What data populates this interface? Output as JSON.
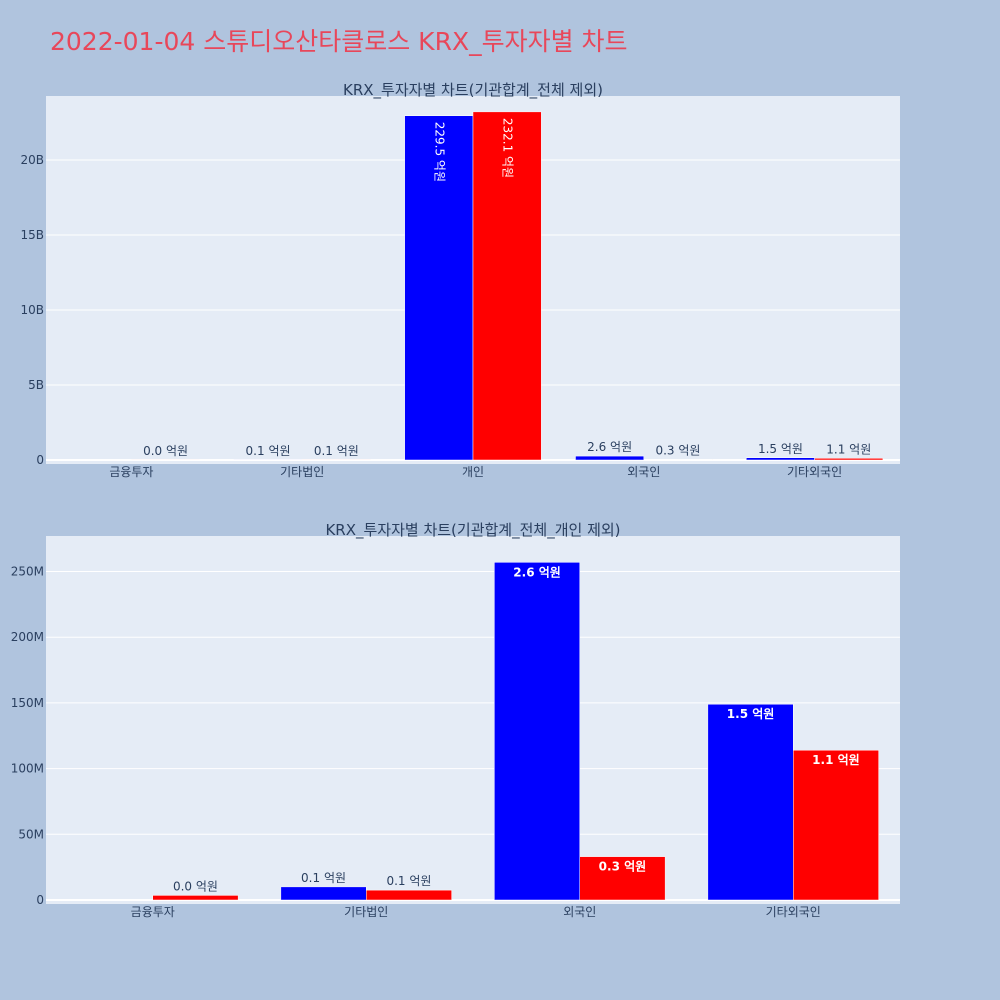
{
  "page": {
    "title": "2022-01-04 스튜디오산타클로스 KRX_투자자별 차트"
  },
  "colors": {
    "background": "#b0c4de",
    "plot_bg": "#e5ecf6",
    "title": "#e8475a",
    "series_a": "#0000ff",
    "series_b": "#ff0000"
  },
  "chart_data": [
    {
      "type": "bar",
      "title": "KRX_투자자별 차트(기관합계_전체 제외)",
      "categories": [
        "금융투자",
        "기타법인",
        "개인",
        "외국인",
        "기타외국인"
      ],
      "ylim": [
        0,
        24000000000
      ],
      "yticks": [
        0,
        5000000000,
        10000000000,
        15000000000,
        20000000000
      ],
      "ytick_labels": [
        "0",
        "5B",
        "10B",
        "15B",
        "20B"
      ],
      "grid": true,
      "series": [
        {
          "color": "#0000ff",
          "values": [
            0,
            10000000,
            22950000000,
            260000000,
            150000000
          ],
          "labels": [
            "",
            "0.1 억원",
            "229.5 억원",
            "2.6 억원",
            "1.5 억원"
          ]
        },
        {
          "color": "#ff0000",
          "values": [
            3000000,
            8000000,
            23210000000,
            33000000,
            114000000
          ],
          "labels": [
            "0.0 억원",
            "0.1 억원",
            "232.1 억원",
            "0.3 억원",
            "1.1 억원"
          ]
        }
      ]
    },
    {
      "type": "bar",
      "title": "KRX_투자자별 차트(기관합계_전체_개인 제외)",
      "categories": [
        "금융투자",
        "기타법인",
        "외국인",
        "기타외국인"
      ],
      "ylim": [
        0,
        274000000
      ],
      "yticks": [
        0,
        50000000,
        100000000,
        150000000,
        200000000,
        250000000
      ],
      "ytick_labels": [
        "0",
        "50M",
        "100M",
        "150M",
        "200M",
        "250M"
      ],
      "grid": true,
      "series": [
        {
          "color": "#0000ff",
          "values": [
            0,
            10000000,
            257000000,
            149000000
          ],
          "labels": [
            "",
            "0.1 억원",
            "2.6 억원",
            "1.5 억원"
          ]
        },
        {
          "color": "#ff0000",
          "values": [
            3500000,
            7500000,
            33000000,
            114000000
          ],
          "labels": [
            "0.0 억원",
            "0.1 억원",
            "0.3 억원",
            "1.1 억원"
          ]
        }
      ]
    }
  ]
}
